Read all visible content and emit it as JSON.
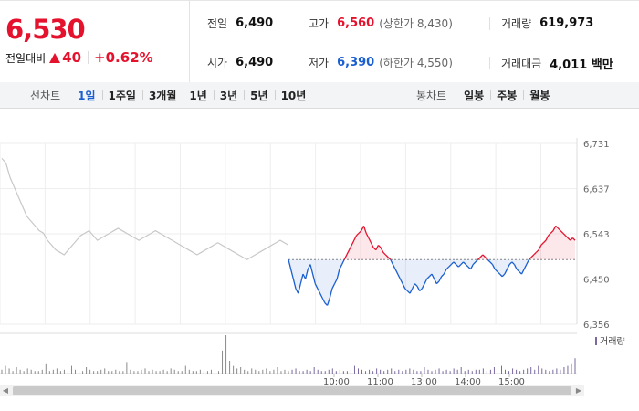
{
  "summary": {
    "price": "6,530",
    "change_label": "전일대비",
    "change_value": "40",
    "change_pct": "+0.62%",
    "prev_close_label": "전일",
    "prev_close": "6,490",
    "high_label": "고가",
    "high": "6,560",
    "upper_limit": "(상한가 8,430)",
    "volume_label": "거래량",
    "volume": "619,973",
    "open_label": "시가",
    "open": "6,490",
    "low_label": "저가",
    "low": "6,390",
    "lower_limit": "(하한가 4,550)",
    "amount_label": "거래대금",
    "amount": "4,011 백만"
  },
  "line_tabs": {
    "title": "선차트",
    "items": [
      "1일",
      "1주일",
      "3개월",
      "1년",
      "3년",
      "5년",
      "10년"
    ],
    "active": "1일"
  },
  "candle_tabs": {
    "title": "봉차트",
    "items": [
      "일봉",
      "주봉",
      "월봉"
    ]
  },
  "colors": {
    "up": "#e4122d",
    "down": "#1a5fd1",
    "prev_day_line": "#c8c8c8",
    "grid": "#eeeeee",
    "volume": "#8a8a8a"
  },
  "chart_data": {
    "type": "line",
    "reference_price": 6490,
    "y_ticks": [
      "6,731",
      "6,637",
      "6,543",
      "6,450",
      "6,356"
    ],
    "ylim": [
      6356,
      6731
    ],
    "volume_label": "거래량",
    "x_labels": [
      "10:00",
      "11:00",
      "13:00",
      "14:00",
      "15:00"
    ],
    "series": [
      {
        "values": [
          6700,
          6690,
          6660,
          6640,
          6620,
          6600,
          6580,
          6570,
          6560,
          6550,
          6545,
          6530,
          6520,
          6510,
          6505,
          6500,
          6510,
          6520,
          6530,
          6540,
          6545,
          6550,
          6540,
          6530,
          6535,
          6540,
          6545,
          6550,
          6555,
          6550,
          6545,
          6540,
          6535,
          6530,
          6535,
          6540,
          6545,
          6550,
          6545,
          6540,
          6535,
          6530,
          6525,
          6520,
          6515,
          6510,
          6505,
          6500,
          6505,
          6510,
          6515,
          6520,
          6525,
          6520,
          6515,
          6510,
          6505,
          6500,
          6495,
          6490,
          6495,
          6500,
          6505,
          6510,
          6515,
          6520,
          6525,
          6530,
          6525,
          6520
        ]
      },
      {
        "values": [
          6490,
          6470,
          6450,
          6430,
          6420,
          6440,
          6460,
          6450,
          6470,
          6480,
          6460,
          6440,
          6430,
          6420,
          6410,
          6400,
          6395,
          6410,
          6430,
          6440,
          6450,
          6470,
          6480,
          6490,
          6500,
          6510,
          6520,
          6530,
          6540,
          6545,
          6550,
          6560,
          6545,
          6535,
          6525,
          6515,
          6510,
          6520,
          6515,
          6505,
          6500,
          6495,
          6490,
          6480,
          6470,
          6460,
          6450,
          6440,
          6430,
          6425,
          6420,
          6430,
          6440,
          6435,
          6425,
          6430,
          6440,
          6450,
          6455,
          6460,
          6450,
          6440,
          6445,
          6455,
          6460,
          6470,
          6475,
          6480,
          6485,
          6480,
          6475,
          6480,
          6485,
          6480,
          6475,
          6470,
          6480,
          6485,
          6490,
          6495,
          6500,
          6495,
          6490,
          6485,
          6480,
          6470,
          6465,
          6460,
          6455,
          6460,
          6470,
          6480,
          6485,
          6480,
          6470,
          6465,
          6460,
          6470,
          6480,
          6490,
          6495,
          6500,
          6505,
          6510,
          6520,
          6525,
          6530,
          6540,
          6545,
          6550,
          6560,
          6555,
          6550,
          6545,
          6540,
          6535,
          6530,
          6535,
          6530
        ]
      }
    ],
    "volume": [
      3,
      6,
      4,
      2,
      5,
      3,
      2,
      4,
      3,
      2,
      2,
      3,
      8,
      2,
      3,
      4,
      2,
      3,
      2,
      6,
      3,
      2,
      2,
      5,
      3,
      2,
      2,
      3,
      4,
      2,
      2,
      3,
      2,
      2,
      9,
      3,
      2,
      2,
      3,
      4,
      2,
      3,
      2,
      2,
      3,
      2,
      4,
      3,
      2,
      2,
      6,
      3,
      2,
      2,
      3,
      2,
      2,
      3,
      4,
      2,
      18,
      30,
      10,
      6,
      4,
      5,
      3,
      2,
      4,
      3,
      2,
      3,
      4,
      2,
      3,
      5,
      2,
      3,
      2,
      3,
      4,
      2,
      2,
      3,
      2,
      5,
      3,
      2,
      2,
      3,
      4,
      2,
      3,
      2,
      2,
      3,
      6,
      4,
      3,
      2,
      3,
      2,
      4,
      3,
      2,
      3,
      4,
      2,
      3,
      2,
      3,
      4,
      3,
      2,
      2,
      5,
      3,
      2,
      3,
      4,
      2,
      3,
      2,
      4,
      3,
      5,
      2,
      3,
      2,
      3,
      3,
      4,
      2,
      3,
      5,
      2,
      6,
      3,
      2,
      4,
      3,
      2,
      3,
      4,
      5,
      3,
      6,
      4,
      3,
      2,
      3,
      4,
      3,
      5,
      6,
      8,
      12
    ]
  }
}
